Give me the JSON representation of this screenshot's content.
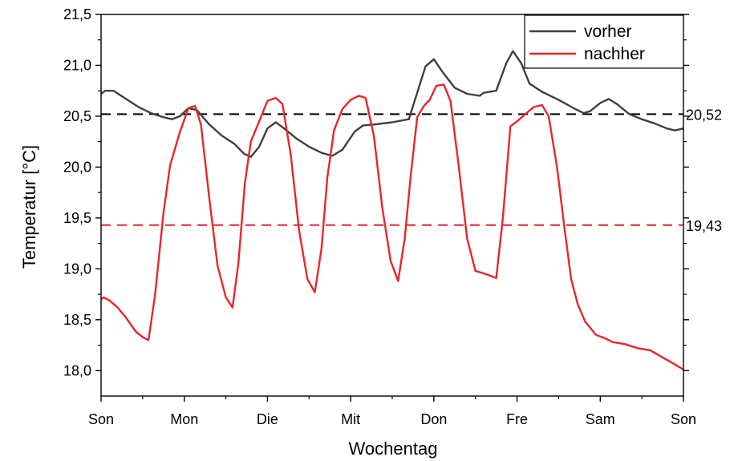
{
  "chart_data": {
    "type": "line",
    "title": "",
    "xlabel": "Wochentag",
    "ylabel": "Temperatur [°C]",
    "ylim": [
      17.75,
      21.5
    ],
    "yticks": [
      "18,0",
      "18,5",
      "19,0",
      "19,5",
      "20,0",
      "20,5",
      "21,0",
      "21,5"
    ],
    "ytick_values": [
      18.0,
      18.5,
      19.0,
      19.5,
      20.0,
      20.5,
      21.0,
      21.5
    ],
    "xlim": [
      0,
      7
    ],
    "categories": [
      "Son",
      "Mon",
      "Die",
      "Mit",
      "Don",
      "Fre",
      "Sam",
      "Son"
    ],
    "legend_position": "top-right",
    "reference_lines": [
      {
        "value": 20.52,
        "label": "20,52",
        "color": "#000000",
        "style": "dashed"
      },
      {
        "value": 19.43,
        "label": "19,43",
        "color": "#e8262b",
        "style": "dashed"
      }
    ],
    "series": [
      {
        "name": "vorher",
        "color": "#404040",
        "points": [
          [
            0,
            20.72
          ],
          [
            0.05,
            20.75
          ],
          [
            0.15,
            20.75
          ],
          [
            0.3,
            20.67
          ],
          [
            0.45,
            20.59
          ],
          [
            0.6,
            20.53
          ],
          [
            0.75,
            20.49
          ],
          [
            0.85,
            20.47
          ],
          [
            0.95,
            20.5
          ],
          [
            1.05,
            20.58
          ],
          [
            1.15,
            20.56
          ],
          [
            1.3,
            20.42
          ],
          [
            1.45,
            20.31
          ],
          [
            1.6,
            20.23
          ],
          [
            1.72,
            20.13
          ],
          [
            1.8,
            20.1
          ],
          [
            1.9,
            20.2
          ],
          [
            2.0,
            20.38
          ],
          [
            2.1,
            20.44
          ],
          [
            2.2,
            20.38
          ],
          [
            2.35,
            20.28
          ],
          [
            2.5,
            20.2
          ],
          [
            2.65,
            20.14
          ],
          [
            2.78,
            20.11
          ],
          [
            2.9,
            20.17
          ],
          [
            3.05,
            20.35
          ],
          [
            3.15,
            20.41
          ],
          [
            3.3,
            20.42
          ],
          [
            3.5,
            20.44
          ],
          [
            3.7,
            20.47
          ],
          [
            3.8,
            20.73
          ],
          [
            3.9,
            20.99
          ],
          [
            4.0,
            21.06
          ],
          [
            4.1,
            20.94
          ],
          [
            4.25,
            20.78
          ],
          [
            4.4,
            20.72
          ],
          [
            4.55,
            20.7
          ],
          [
            4.6,
            20.73
          ],
          [
            4.75,
            20.75
          ],
          [
            4.87,
            21.02
          ],
          [
            4.95,
            21.14
          ],
          [
            5.05,
            21.02
          ],
          [
            5.15,
            20.82
          ],
          [
            5.3,
            20.74
          ],
          [
            5.5,
            20.66
          ],
          [
            5.7,
            20.57
          ],
          [
            5.8,
            20.53
          ],
          [
            5.88,
            20.55
          ],
          [
            6.0,
            20.63
          ],
          [
            6.1,
            20.67
          ],
          [
            6.2,
            20.62
          ],
          [
            6.35,
            20.52
          ],
          [
            6.5,
            20.47
          ],
          [
            6.65,
            20.43
          ],
          [
            6.8,
            20.38
          ],
          [
            6.9,
            20.36
          ],
          [
            7.0,
            20.38
          ]
        ]
      },
      {
        "name": "nachher",
        "color": "#e8262b",
        "points": [
          [
            0,
            18.7
          ],
          [
            0.03,
            18.72
          ],
          [
            0.1,
            18.69
          ],
          [
            0.2,
            18.62
          ],
          [
            0.3,
            18.52
          ],
          [
            0.42,
            18.38
          ],
          [
            0.5,
            18.33
          ],
          [
            0.57,
            18.3
          ],
          [
            0.65,
            18.75
          ],
          [
            0.75,
            19.55
          ],
          [
            0.83,
            20.02
          ],
          [
            0.95,
            20.35
          ],
          [
            1.05,
            20.58
          ],
          [
            1.13,
            20.6
          ],
          [
            1.2,
            20.42
          ],
          [
            1.3,
            19.7
          ],
          [
            1.4,
            19.03
          ],
          [
            1.5,
            18.72
          ],
          [
            1.58,
            18.62
          ],
          [
            1.65,
            19.05
          ],
          [
            1.73,
            19.85
          ],
          [
            1.8,
            20.25
          ],
          [
            1.9,
            20.45
          ],
          [
            2.0,
            20.65
          ],
          [
            2.1,
            20.68
          ],
          [
            2.18,
            20.62
          ],
          [
            2.28,
            20.12
          ],
          [
            2.38,
            19.38
          ],
          [
            2.48,
            18.9
          ],
          [
            2.57,
            18.77
          ],
          [
            2.65,
            19.2
          ],
          [
            2.72,
            19.9
          ],
          [
            2.8,
            20.36
          ],
          [
            2.9,
            20.57
          ],
          [
            3.0,
            20.66
          ],
          [
            3.1,
            20.7
          ],
          [
            3.18,
            20.68
          ],
          [
            3.28,
            20.3
          ],
          [
            3.38,
            19.6
          ],
          [
            3.48,
            19.08
          ],
          [
            3.57,
            18.88
          ],
          [
            3.65,
            19.3
          ],
          [
            3.72,
            19.9
          ],
          [
            3.8,
            20.49
          ],
          [
            3.88,
            20.6
          ],
          [
            3.95,
            20.66
          ],
          [
            4.03,
            20.8
          ],
          [
            4.12,
            20.81
          ],
          [
            4.2,
            20.65
          ],
          [
            4.3,
            20.0
          ],
          [
            4.4,
            19.3
          ],
          [
            4.5,
            18.98
          ],
          [
            4.62,
            18.95
          ],
          [
            4.75,
            18.91
          ],
          [
            4.83,
            19.5
          ],
          [
            4.92,
            20.4
          ],
          [
            5.0,
            20.45
          ],
          [
            5.1,
            20.52
          ],
          [
            5.2,
            20.59
          ],
          [
            5.3,
            20.61
          ],
          [
            5.38,
            20.5
          ],
          [
            5.48,
            20.0
          ],
          [
            5.57,
            19.4
          ],
          [
            5.65,
            18.9
          ],
          [
            5.73,
            18.65
          ],
          [
            5.82,
            18.48
          ],
          [
            5.95,
            18.35
          ],
          [
            6.05,
            18.32
          ],
          [
            6.15,
            18.28
          ],
          [
            6.3,
            18.26
          ],
          [
            6.45,
            18.22
          ],
          [
            6.6,
            18.2
          ],
          [
            6.75,
            18.13
          ],
          [
            6.9,
            18.06
          ],
          [
            7.0,
            18.01
          ]
        ]
      }
    ]
  }
}
